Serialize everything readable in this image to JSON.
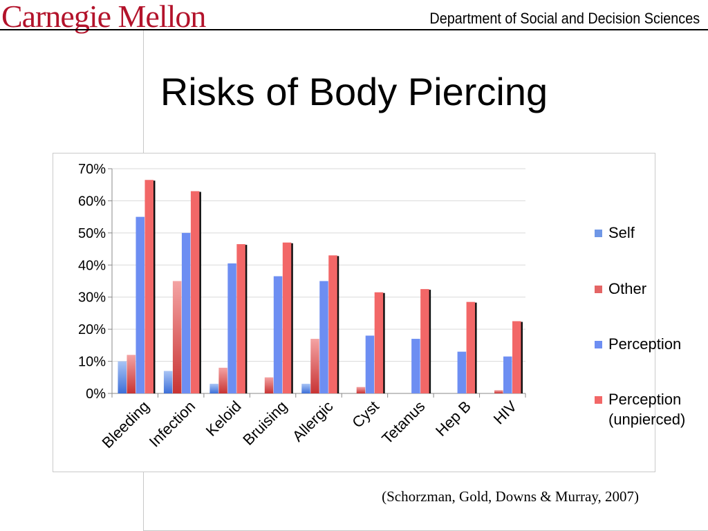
{
  "header": {
    "logo_text": "Carnegie Mellon",
    "department": "Department of Social and Decision Sciences"
  },
  "slide": {
    "title": "Risks of Body Piercing",
    "citation": "(Schorzman, Gold, Downs & Murray, 2007)"
  },
  "colors": {
    "self": "#6f97e6",
    "other": "#e46565",
    "perception": "#6d8ef2",
    "perception_unpierced": "#f26767",
    "logo": "#b3132b"
  },
  "chart_data": {
    "type": "bar",
    "categories": [
      "Bleeding",
      "Infection",
      "Keloid",
      "Bruising",
      "Allergic",
      "Cyst",
      "Tetanus",
      "Hep B",
      "HIV"
    ],
    "series": [
      {
        "name": "Self",
        "values": [
          10,
          7,
          3,
          0,
          3,
          0,
          0,
          0,
          0
        ]
      },
      {
        "name": "Other",
        "values": [
          12,
          35,
          8,
          5,
          17,
          2,
          0,
          0,
          1
        ]
      },
      {
        "name": "Perception",
        "values": [
          55,
          50,
          40.5,
          36.5,
          35,
          18,
          17,
          13,
          11.5
        ]
      },
      {
        "name": "Perception\n(unpierced)",
        "values": [
          66.5,
          63,
          46.5,
          47,
          43,
          31.5,
          32.5,
          28.5,
          22.5
        ]
      }
    ],
    "y_ticks": [
      "0%",
      "10%",
      "20%",
      "30%",
      "40%",
      "50%",
      "60%",
      "70%"
    ],
    "ylim": [
      0,
      70
    ],
    "grid": true,
    "legend_position": "right"
  }
}
